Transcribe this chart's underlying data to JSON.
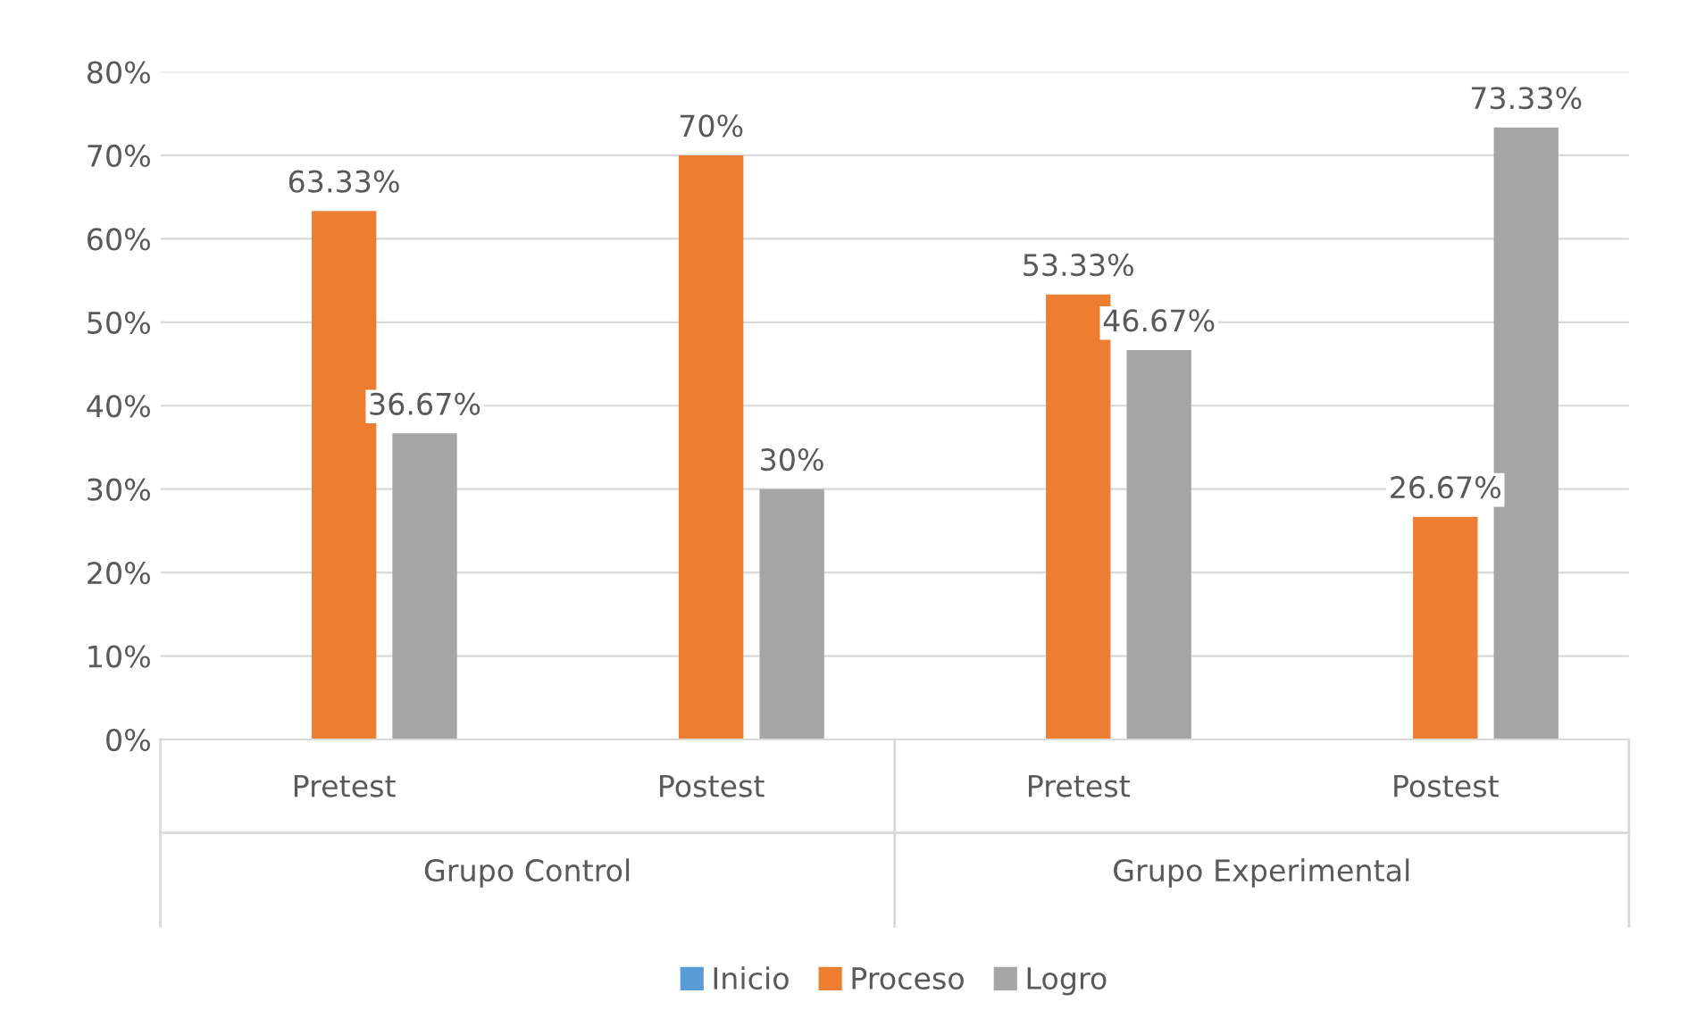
{
  "chart_data": {
    "type": "bar",
    "categories": [
      "Pretest",
      "Postest",
      "Pretest",
      "Postest"
    ],
    "annotations": [
      "Grupo Control",
      "Grupo Experimental"
    ],
    "series": [
      {
        "name": "Inicio",
        "color": "#5b9bd5",
        "values": [
          null,
          null,
          null,
          null
        ]
      },
      {
        "name": "Proceso",
        "color": "#ed7d31",
        "values": [
          63.33,
          70,
          53.33,
          26.67
        ],
        "value_labels": [
          "63.33%",
          "70%",
          "53.33%",
          "26.67%"
        ]
      },
      {
        "name": "Logro",
        "color": "#a5a5a5",
        "values": [
          36.67,
          30,
          46.67,
          73.33
        ],
        "value_labels": [
          "36.67%",
          "30%",
          "46.67%",
          "73.33%"
        ]
      }
    ],
    "ylim": [
      0,
      80
    ],
    "yticks": [
      {
        "value": 0,
        "label": "0%"
      },
      {
        "value": 10,
        "label": "10%"
      },
      {
        "value": 20,
        "label": "20%"
      },
      {
        "value": 30,
        "label": "30%"
      },
      {
        "value": 40,
        "label": "40%"
      },
      {
        "value": 50,
        "label": "50%"
      },
      {
        "value": 60,
        "label": "60%"
      },
      {
        "value": 70,
        "label": "70%"
      },
      {
        "value": 80,
        "label": "80%"
      }
    ],
    "grid": "y",
    "legend": "bottom"
  }
}
